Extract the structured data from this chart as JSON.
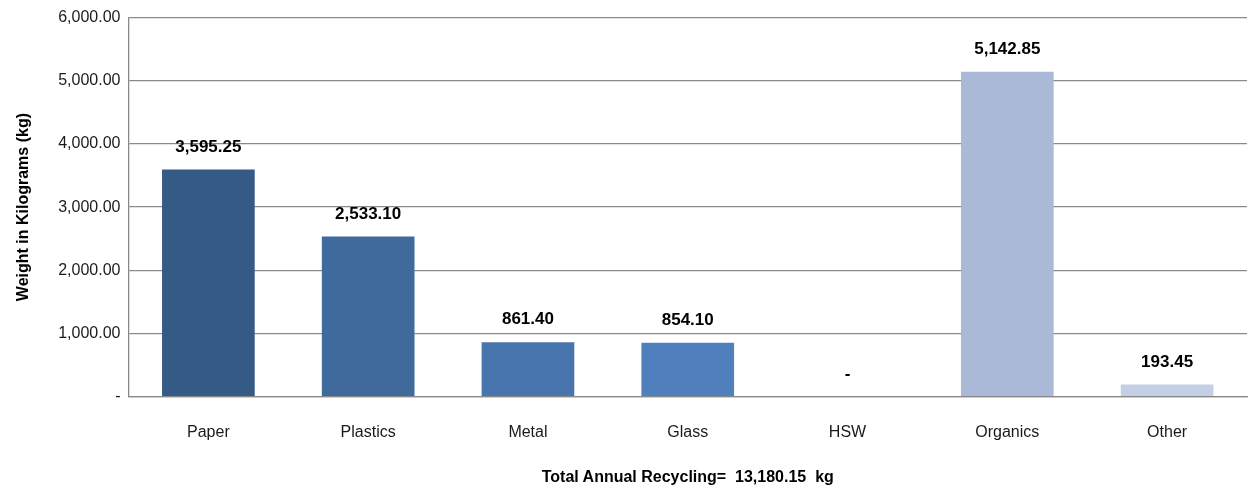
{
  "chart_data": {
    "type": "bar",
    "xlabel": "Total Annual Recycling=  13,180.15  kg",
    "ylabel": "Weight in Kilograms (kg)",
    "categories": [
      "Paper",
      "Plastics",
      "Metal",
      "Glass",
      "HSW",
      "Organics",
      "Other"
    ],
    "values": [
      3595.25,
      2533.1,
      861.4,
      854.1,
      0,
      5142.85,
      193.45
    ],
    "value_labels": [
      "3,595.25",
      "2,533.10",
      "861.40",
      "854.10",
      "-",
      "5,142.85",
      "193.45"
    ],
    "colors": [
      "#365a86",
      "#406a9c",
      "#4875ae",
      "#4f80bd",
      null,
      "#aab9d7",
      "#c3cfe3"
    ],
    "ylim": [
      0,
      6000
    ],
    "yticks": [
      {
        "value": 0,
        "label": "-"
      },
      {
        "value": 1000,
        "label": "1,000.00"
      },
      {
        "value": 2000,
        "label": "2,000.00"
      },
      {
        "value": 3000,
        "label": "3,000.00"
      },
      {
        "value": 4000,
        "label": "4,000.00"
      },
      {
        "value": 5000,
        "label": "5,000.00"
      },
      {
        "value": 6000,
        "label": "6,000.00"
      }
    ],
    "grid": "y"
  }
}
